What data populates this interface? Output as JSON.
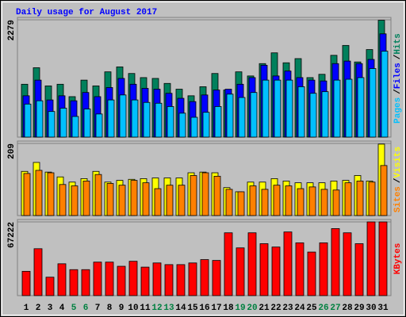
{
  "chart_data": [
    {
      "type": "bar",
      "title": "Daily usage for August 2017",
      "categories": [
        "1",
        "2",
        "3",
        "4",
        "5",
        "6",
        "7",
        "8",
        "9",
        "10",
        "11",
        "12",
        "13",
        "14",
        "15",
        "16",
        "17",
        "18",
        "19",
        "20",
        "21",
        "22",
        "23",
        "24",
        "25",
        "26",
        "27",
        "28",
        "29",
        "30",
        "31"
      ],
      "category_colors": [
        "#000000",
        "#000000",
        "#000000",
        "#000000",
        "#008040",
        "#008040",
        "#000000",
        "#000000",
        "#000000",
        "#000000",
        "#000000",
        "#008040",
        "#008040",
        "#000000",
        "#000000",
        "#000000",
        "#000000",
        "#000000",
        "#008040",
        "#008040",
        "#000000",
        "#000000",
        "#000000",
        "#000000",
        "#000000",
        "#008040",
        "#008040",
        "#000000",
        "#000000",
        "#000000",
        "#000000"
      ],
      "legend_separator": "/",
      "ylim": [
        0,
        2279
      ],
      "yticks": [
        2279
      ],
      "series": [
        {
          "name": "Hits",
          "color": "#00805c",
          "values": [
            1027,
            1348,
            995,
            1027,
            786,
            1107,
            995,
            1268,
            1364,
            1236,
            1156,
            1140,
            1043,
            931,
            803,
            979,
            1236,
            915,
            1268,
            1188,
            1428,
            1637,
            1444,
            1525,
            1156,
            1220,
            1589,
            1781,
            1460,
            1701,
            2270
          ]
        },
        {
          "name": "Files",
          "color": "#0000ff",
          "values": [
            803,
            1107,
            722,
            803,
            706,
            867,
            786,
            963,
            1140,
            1027,
            947,
            931,
            851,
            754,
            690,
            819,
            915,
            931,
            1027,
            1156,
            1396,
            1188,
            1284,
            1156,
            1107,
            1091,
            1428,
            1477,
            1428,
            1509,
            2006
          ]
        },
        {
          "name": "Pages",
          "color": "#00c0ff",
          "values": [
            642,
            706,
            498,
            562,
            401,
            546,
            449,
            722,
            819,
            722,
            674,
            658,
            594,
            465,
            385,
            482,
            594,
            835,
            770,
            867,
            1107,
            1107,
            1107,
            979,
            851,
            883,
            1107,
            1124,
            1156,
            1332,
            1669
          ]
        }
      ]
    },
    {
      "type": "bar",
      "legend_separator": "/",
      "ylim": [
        0,
        209
      ],
      "yticks": [
        209
      ],
      "series": [
        {
          "name": "Visits",
          "color": "#ffff00",
          "values": [
            128,
            154,
            126,
            112,
            97,
            107,
            128,
            97,
            102,
            105,
            107,
            109,
            109,
            109,
            124,
            126,
            124,
            81,
            69,
            97,
            97,
            107,
            100,
            95,
            95,
            95,
            100,
            102,
            116,
            100,
            207
          ]
        },
        {
          "name": "Sites",
          "color": "#ff8000",
          "values": [
            122,
            131,
            124,
            90,
            86,
            100,
            119,
            93,
            88,
            102,
            95,
            78,
            88,
            88,
            116,
            124,
            114,
            76,
            69,
            86,
            76,
            88,
            86,
            78,
            83,
            76,
            74,
            95,
            100,
            97,
            145
          ]
        }
      ]
    },
    {
      "type": "bar",
      "ylim": [
        0,
        67222
      ],
      "yticks": [
        67222
      ],
      "series": [
        {
          "name": "KBytes",
          "color": "#ff0000",
          "values": [
            22150,
            42780,
            16800,
            29030,
            23680,
            23680,
            30560,
            30560,
            26740,
            31320,
            25970,
            29790,
            28260,
            28260,
            29790,
            32850,
            32080,
            57290,
            43540,
            57290,
            47360,
            44310,
            58060,
            48130,
            39720,
            48130,
            61110,
            57290,
            47360,
            67222,
            67222
          ]
        }
      ]
    }
  ]
}
